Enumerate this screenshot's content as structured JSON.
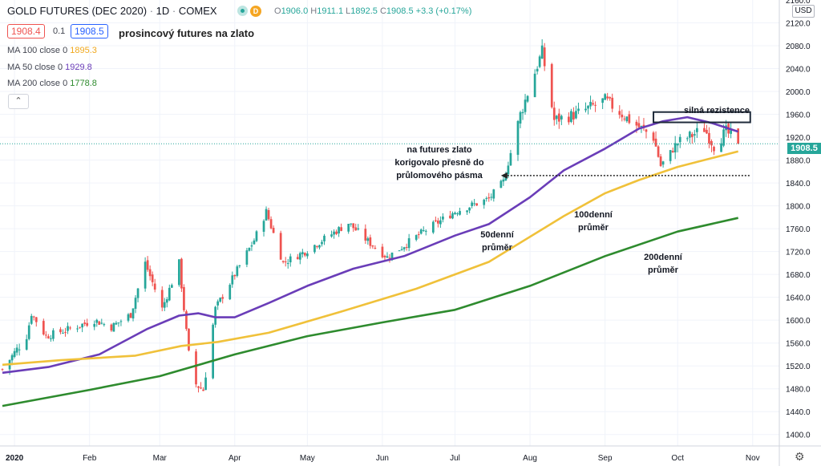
{
  "header": {
    "symbol": "GOLD FUTURES (DEC 2020)",
    "interval": "1D",
    "exchange": "COMEX",
    "ohlc": {
      "o_label": "O",
      "o": "1906.0",
      "h_label": "H",
      "h": "1911.1",
      "l_label": "L",
      "l": "1892.5",
      "c_label": "C",
      "c": "1908.5",
      "change": "+3.3 (+0.17%)"
    },
    "sell_price": "1908.4",
    "spread": "0.1",
    "buy_price": "1908.5",
    "title_note": "prosincový futures na zlato",
    "badge_d": "D"
  },
  "indicators": [
    {
      "name": "MA 100 close 0",
      "value": "1895.3",
      "color": "#f0c13a"
    },
    {
      "name": "MA 50 close 0",
      "value": "1929.8",
      "color": "#6a3db8"
    },
    {
      "name": "MA 200 close 0",
      "value": "1778.8",
      "color": "#2e8b2e"
    }
  ],
  "price_axis": {
    "currency": "USD",
    "last_price": "1908.5",
    "top_partial": "2160.0"
  },
  "annotations": {
    "resistance": "silná rezistence",
    "futures_note_1": "na futures zlato",
    "futures_note_2": "korigovalo přesně do",
    "futures_note_3": "průlomového pásma",
    "ma50_1": "50denní",
    "ma50_2": "průměr",
    "ma100_1": "100denní",
    "ma100_2": "průměr",
    "ma200_1": "200denní",
    "ma200_2": "průměr"
  },
  "colors": {
    "up": "#26a69a",
    "down": "#ef5350",
    "ma50": "#6a3db8",
    "ma100": "#f0c13a",
    "ma200": "#2e8b2e",
    "grid": "#f0f3fa",
    "axis_text": "#131722"
  },
  "chart_data": {
    "type": "candlestick",
    "title": "GOLD FUTURES (DEC 2020)",
    "ylim": [
      1380,
      2160
    ],
    "y_ticks": [
      1400,
      1440,
      1480,
      1520,
      1560,
      1600,
      1640,
      1680,
      1720,
      1760,
      1800,
      1840,
      1880,
      1920,
      1960,
      2000,
      2040,
      2080,
      2120
    ],
    "x_labels": [
      "2020",
      "Feb",
      "Mar",
      "Apr",
      "May",
      "Jun",
      "Jul",
      "Aug",
      "Sep",
      "Oct",
      "Nov"
    ],
    "x_label_dates": [
      "2020-01-01",
      "2020-02-01",
      "2020-03-01",
      "2020-04-01",
      "2020-05-01",
      "2020-06-01",
      "2020-07-01",
      "2020-08-01",
      "2020-09-01",
      "2020-10-01",
      "2020-11-01"
    ],
    "x_range": [
      "2019-12-26",
      "2020-11-12"
    ],
    "last_close": 1908.5,
    "price_path": [
      [
        "2019-12-27",
        1514
      ],
      [
        "2020-01-06",
        1572
      ],
      [
        "2020-01-08",
        1612
      ],
      [
        "2020-01-14",
        1572
      ],
      [
        "2020-01-24",
        1585
      ],
      [
        "2020-02-03",
        1600
      ],
      [
        "2020-02-10",
        1588
      ],
      [
        "2020-02-18",
        1610
      ],
      [
        "2020-02-24",
        1700
      ],
      [
        "2020-03-02",
        1620
      ],
      [
        "2020-03-09",
        1700
      ],
      [
        "2020-03-13",
        1540
      ],
      [
        "2020-03-16",
        1488
      ],
      [
        "2020-03-19",
        1478
      ],
      [
        "2020-03-24",
        1620
      ],
      [
        "2020-04-09",
        1740
      ],
      [
        "2020-04-14",
        1790
      ],
      [
        "2020-04-21",
        1700
      ],
      [
        "2020-04-30",
        1720
      ],
      [
        "2020-05-18",
        1770
      ],
      [
        "2020-05-26",
        1738
      ],
      [
        "2020-06-03",
        1710
      ],
      [
        "2020-06-18",
        1755
      ],
      [
        "2020-07-01",
        1790
      ],
      [
        "2020-07-15",
        1812
      ],
      [
        "2020-07-21",
        1842
      ],
      [
        "2020-07-28",
        1960
      ],
      [
        "2020-08-06",
        2070
      ],
      [
        "2020-08-11",
        1950
      ],
      [
        "2020-08-20",
        1960
      ],
      [
        "2020-09-01",
        1985
      ],
      [
        "2020-09-11",
        1950
      ],
      [
        "2020-09-21",
        1920
      ],
      [
        "2020-09-24",
        1870
      ],
      [
        "2020-10-01",
        1910
      ],
      [
        "2020-10-12",
        1935
      ],
      [
        "2020-10-16",
        1905
      ],
      [
        "2020-10-21",
        1930
      ],
      [
        "2020-10-26",
        1908.5
      ]
    ],
    "series": [
      {
        "name": "MA 50 close 0",
        "color": "#6a3db8",
        "points": [
          [
            "2019-12-27",
            1508
          ],
          [
            "2020-01-15",
            1518
          ],
          [
            "2020-02-05",
            1540
          ],
          [
            "2020-02-25",
            1585
          ],
          [
            "2020-03-09",
            1608
          ],
          [
            "2020-03-17",
            1612
          ],
          [
            "2020-03-24",
            1605
          ],
          [
            "2020-04-01",
            1605
          ],
          [
            "2020-04-15",
            1630
          ],
          [
            "2020-05-01",
            1660
          ],
          [
            "2020-05-20",
            1690
          ],
          [
            "2020-06-10",
            1712
          ],
          [
            "2020-07-01",
            1748
          ],
          [
            "2020-07-15",
            1768
          ],
          [
            "2020-08-01",
            1815
          ],
          [
            "2020-08-15",
            1862
          ],
          [
            "2020-09-01",
            1900
          ],
          [
            "2020-09-15",
            1935
          ],
          [
            "2020-09-25",
            1948
          ],
          [
            "2020-10-05",
            1955
          ],
          [
            "2020-10-15",
            1945
          ],
          [
            "2020-10-26",
            1929.8
          ]
        ]
      },
      {
        "name": "MA 100 close 0",
        "color": "#f0c13a",
        "points": [
          [
            "2019-12-27",
            1522
          ],
          [
            "2020-01-20",
            1530
          ],
          [
            "2020-02-20",
            1538
          ],
          [
            "2020-03-10",
            1555
          ],
          [
            "2020-03-25",
            1562
          ],
          [
            "2020-04-15",
            1578
          ],
          [
            "2020-05-15",
            1615
          ],
          [
            "2020-06-15",
            1655
          ],
          [
            "2020-07-15",
            1702
          ],
          [
            "2020-08-15",
            1782
          ],
          [
            "2020-09-01",
            1822
          ],
          [
            "2020-09-15",
            1845
          ],
          [
            "2020-10-01",
            1868
          ],
          [
            "2020-10-26",
            1895.3
          ]
        ]
      },
      {
        "name": "MA 200 close 0",
        "color": "#2e8b2e",
        "points": [
          [
            "2019-12-27",
            1450
          ],
          [
            "2020-02-01",
            1478
          ],
          [
            "2020-03-01",
            1502
          ],
          [
            "2020-04-01",
            1540
          ],
          [
            "2020-05-01",
            1572
          ],
          [
            "2020-06-01",
            1596
          ],
          [
            "2020-07-01",
            1618
          ],
          [
            "2020-08-01",
            1660
          ],
          [
            "2020-09-01",
            1712
          ],
          [
            "2020-10-01",
            1755
          ],
          [
            "2020-10-26",
            1778.8
          ]
        ]
      }
    ],
    "resistance_zone": {
      "from": "2020-09-21",
      "to": "2020-10-31",
      "low": 1946,
      "high": 1964
    },
    "support_level": {
      "price": 1853,
      "from": "2020-07-20",
      "to": "2020-10-31"
    }
  }
}
